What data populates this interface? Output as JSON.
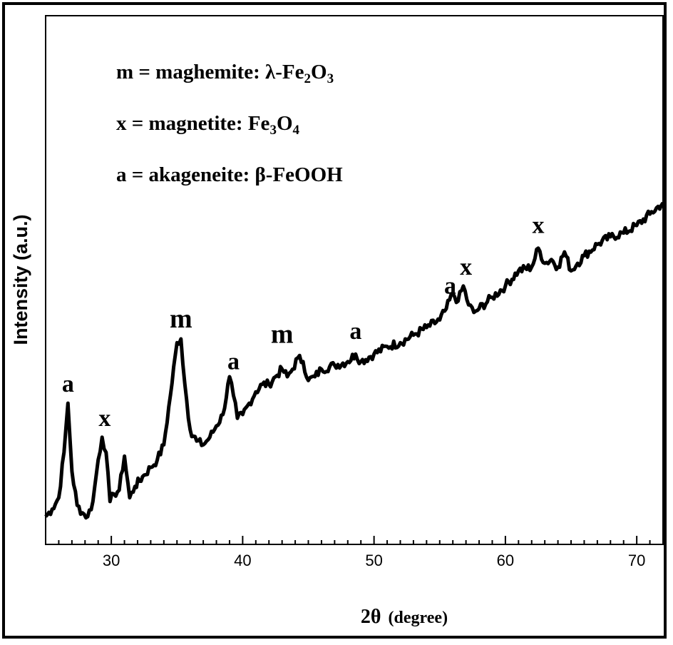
{
  "chart_data": {
    "type": "line",
    "xlabel_main": "2θ",
    "xlabel_unit": "(degree)",
    "ylabel": "Intensity (a.u.)",
    "xlim": [
      25,
      72
    ],
    "ylim": [
      0,
      100
    ],
    "xticks": [
      30,
      40,
      50,
      60,
      70
    ],
    "y_tick_labels": false,
    "grid": false,
    "legend_position": "top-left",
    "legend": [
      {
        "symbol": "m",
        "name": "maghemite",
        "formula_parts": [
          [
            "λ-Fe",
            false
          ],
          [
            "2",
            true
          ],
          [
            "O",
            false
          ],
          [
            "3",
            true
          ]
        ]
      },
      {
        "symbol": "x",
        "name": "magnetite",
        "formula_parts": [
          [
            "Fe",
            false
          ],
          [
            "3",
            true
          ],
          [
            "O",
            false
          ],
          [
            "4",
            true
          ]
        ]
      },
      {
        "symbol": "a",
        "name": "akageneite",
        "formula_parts": [
          [
            "β-FeOOH",
            false
          ]
        ]
      }
    ],
    "series": [
      {
        "color": "#000000",
        "x": [
          25.0,
          25.5,
          26.0,
          26.4,
          26.7,
          27.0,
          27.4,
          27.8,
          28.2,
          28.6,
          29.0,
          29.3,
          29.6,
          29.9,
          30.2,
          30.6,
          31.0,
          31.4,
          31.8,
          32.5,
          33.0,
          33.5,
          34.0,
          34.5,
          35.0,
          35.3,
          35.6,
          36.0,
          36.5,
          37.0,
          37.5,
          38.0,
          38.5,
          39.0,
          39.3,
          39.6,
          40.0,
          40.5,
          41.0,
          41.5,
          42.0,
          42.5,
          43.0,
          43.4,
          43.8,
          44.2,
          44.6,
          45.0,
          45.5,
          46.0,
          47.0,
          48.0,
          48.6,
          49.0,
          50.0,
          51.0,
          52.0,
          53.0,
          54.0,
          55.0,
          55.5,
          56.0,
          56.4,
          56.8,
          57.2,
          57.6,
          58.0,
          59.0,
          60.0,
          61.0,
          62.0,
          62.5,
          63.0,
          63.5,
          64.0,
          64.5,
          65.0,
          65.5,
          66.0,
          67.0,
          68.0,
          69.0,
          70.0,
          71.0,
          72.0
        ],
        "y": [
          3,
          5,
          8,
          20,
          33,
          15,
          6,
          4,
          3,
          7,
          18,
          24,
          20,
          7,
          9,
          10,
          19,
          8,
          11,
          14,
          16,
          18,
          22,
          35,
          49,
          50,
          38,
          26,
          23,
          22,
          24,
          27,
          30,
          40,
          35,
          29,
          30,
          33,
          36,
          38,
          38,
          40,
          42,
          40,
          42,
          45,
          44,
          39,
          40,
          42,
          43,
          44,
          46,
          44,
          46,
          48,
          49,
          51,
          53,
          55,
          58,
          62,
          60,
          64,
          59,
          57,
          58,
          61,
          64,
          68,
          69,
          74,
          70,
          71,
          69,
          73,
          68,
          70,
          72,
          75,
          77,
          78,
          80,
          83,
          86
        ]
      }
    ],
    "annotations": [
      {
        "text": "a",
        "x": 26.7,
        "y": 36
      },
      {
        "text": "x",
        "x": 29.5,
        "y": 27
      },
      {
        "text": "m",
        "x": 35.3,
        "y": 53
      },
      {
        "text": "a",
        "x": 39.3,
        "y": 42
      },
      {
        "text": "m",
        "x": 43.0,
        "y": 49
      },
      {
        "text": "a",
        "x": 48.6,
        "y": 50
      },
      {
        "text": "a",
        "x": 55.8,
        "y": 62
      },
      {
        "text": "x",
        "x": 57.0,
        "y": 67
      },
      {
        "text": "x",
        "x": 62.5,
        "y": 78
      }
    ]
  }
}
